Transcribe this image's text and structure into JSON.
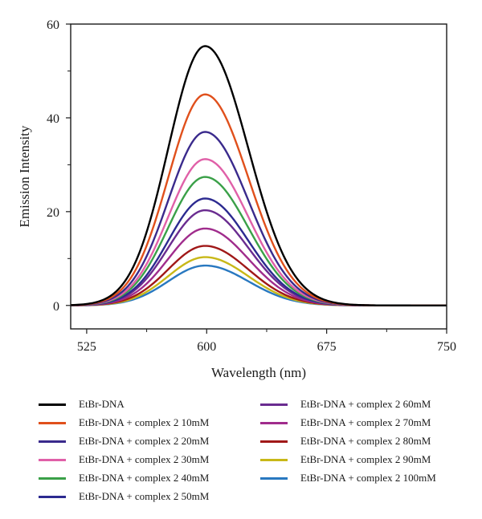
{
  "chart_data": {
    "type": "line",
    "title": "",
    "xlabel": "Wavelength (nm)",
    "ylabel": "Emission Intensity",
    "xlim": [
      515,
      750
    ],
    "ylim": [
      -5,
      60
    ],
    "xticks": [
      525,
      600,
      675,
      750
    ],
    "xtick_labels": [
      "525",
      "600",
      "675",
      "750"
    ],
    "yticks": [
      0,
      20,
      40,
      60
    ],
    "ytick_labels": [
      "0",
      "20",
      "40",
      "60"
    ],
    "grid": false,
    "legend_placement": "below",
    "curve_shape": {
      "peak_wavelength": 599,
      "start_wavelength": 515,
      "end_wavelength": 750
    },
    "series": [
      {
        "name": "EtBr-DNA",
        "peak": 55.3,
        "color": "#000000"
      },
      {
        "name": "EtBr-DNA + complex 2 10mM",
        "peak": 45.0,
        "color": "#e0501c"
      },
      {
        "name": "EtBr-DNA + complex 2 20mM",
        "peak": 37.0,
        "color": "#3a2a8c"
      },
      {
        "name": "EtBr-DNA + complex 2 30mM",
        "peak": 31.2,
        "color": "#e060a8"
      },
      {
        "name": "EtBr-DNA + complex 2 40mM",
        "peak": 27.4,
        "color": "#3aa048"
      },
      {
        "name": "EtBr-DNA + complex 2 50mM",
        "peak": 22.8,
        "color": "#2c2a90"
      },
      {
        "name": "EtBr-DNA + complex 2 60mM",
        "peak": 20.3,
        "color": "#6a2c90"
      },
      {
        "name": "EtBr-DNA + complex 2 70mM",
        "peak": 16.4,
        "color": "#a02c8c"
      },
      {
        "name": "EtBr-DNA + complex 2 80mM",
        "peak": 12.7,
        "color": "#a01818"
      },
      {
        "name": "EtBr-DNA + complex 2 90mM",
        "peak": 10.3,
        "color": "#c8b818"
      },
      {
        "name": "EtBr-DNA + complex 2 100mM",
        "peak": 8.5,
        "color": "#2878c0"
      }
    ]
  }
}
